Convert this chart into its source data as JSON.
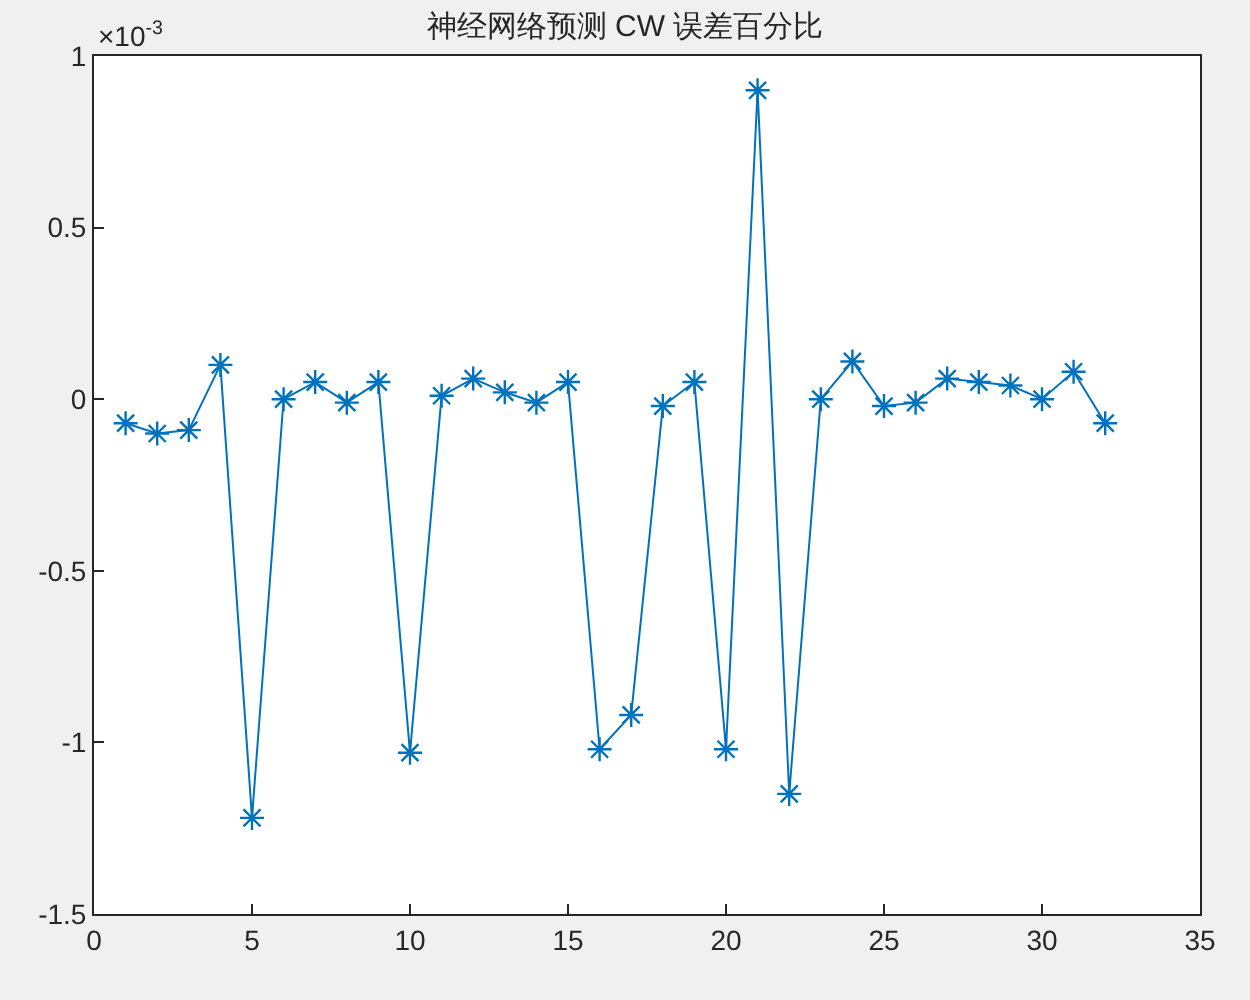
{
  "chart_data": {
    "type": "line",
    "title": "神经网络预测 CW 误差百分比",
    "x": [
      1,
      2,
      3,
      4,
      5,
      6,
      7,
      8,
      9,
      10,
      11,
      12,
      13,
      14,
      15,
      16,
      17,
      18,
      19,
      20,
      21,
      22,
      23,
      24,
      25,
      26,
      27,
      28,
      29,
      30,
      31,
      32
    ],
    "series": [
      {
        "color": "#0072bd",
        "values": [
          -0.07,
          -0.1,
          -0.09,
          0.1,
          -1.22,
          0.0,
          0.05,
          -0.01,
          0.05,
          -1.03,
          0.01,
          0.06,
          0.02,
          -0.01,
          0.05,
          -1.02,
          -0.92,
          -0.02,
          0.05,
          -1.02,
          0.9,
          -1.15,
          0.0,
          0.11,
          -0.02,
          -0.01,
          0.06,
          0.05,
          0.04,
          0.0,
          0.08,
          -0.07
        ]
      }
    ],
    "annotations": [
      "×10$^{-3}$"
    ],
    "xlim": [
      0,
      35
    ],
    "xticks": [
      0,
      5,
      10,
      15,
      20,
      25,
      30,
      35
    ],
    "ylim": [
      -1.5,
      1
    ],
    "yticks": [
      -1.5,
      -1,
      -0.5,
      0,
      0.5,
      1
    ],
    "grid": false,
    "legend": false,
    "marker": "cross",
    "line_style": "solid"
  }
}
